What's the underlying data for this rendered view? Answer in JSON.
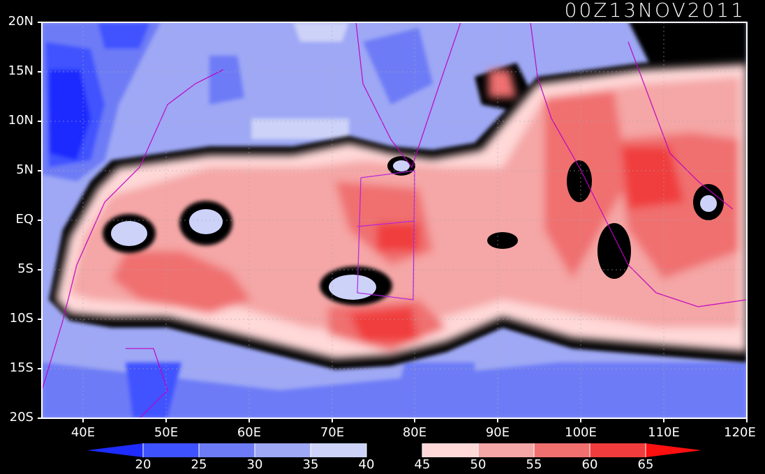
{
  "title": "00Z13NOV2011",
  "lat_labels": [
    "20N",
    "15N",
    "10N",
    "5N",
    "EQ",
    "5S",
    "10S",
    "15S",
    "20S"
  ],
  "lon_labels": [
    "40E",
    "50E",
    "60E",
    "70E",
    "80E",
    "90E",
    "100E",
    "110E",
    "120E"
  ],
  "colorbar": {
    "levels": [
      "20",
      "25",
      "30",
      "35",
      "40",
      "45",
      "50",
      "55",
      "60",
      "65"
    ],
    "colors": [
      "#1e2cff",
      "#3f52ff",
      "#6d7cf6",
      "#9ea8f5",
      "#ccd2f8",
      "#000000",
      "#ffd8d8",
      "#f5a6a6",
      "#f07070",
      "#f03c3c",
      "#ff1010"
    ]
  },
  "map": {
    "lon_range": [
      35,
      120
    ],
    "lat_range": [
      -20,
      20
    ]
  }
}
